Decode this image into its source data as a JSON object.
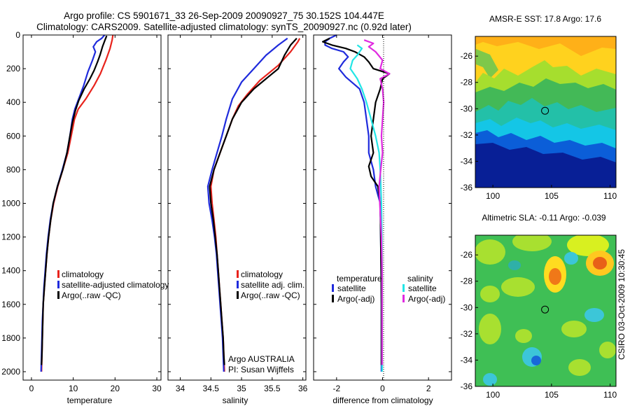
{
  "title": {
    "line1": "Argo profile: CS 5901671_33 26-Sep-2009 20090927_75 30.152S 104.447E",
    "line2": "Climatology: CARS2009. Satellite-adjusted climatology: synTS_20090927.nc (0.92d later)"
  },
  "side_label": "CSIRO 03-Oct-2009 10:30:45",
  "colors": {
    "climatology": "#e8231c",
    "satellite": "#1f2bdc",
    "argo": "#000000",
    "sal_satellite": "#22e6e6",
    "sal_argo": "#e02ae0"
  },
  "chart_data": [
    {
      "type": "line",
      "id": "temperature",
      "xlabel": "temperature",
      "ylabel": "",
      "xlim": [
        -2,
        31
      ],
      "ylim": [
        2050,
        0
      ],
      "x_ticks": [
        "0",
        "10",
        "20",
        "30"
      ],
      "y_ticks": [
        "0",
        "200",
        "400",
        "600",
        "800",
        "1000",
        "1200",
        "1400",
        "1600",
        "1800",
        "2000"
      ],
      "legend": [
        "climatology",
        "satellite-adjusted climatology",
        "Argo(..raw -QC)"
      ],
      "series": [
        {
          "name": "climatology",
          "color": "#e8231c",
          "points": [
            [
              19.5,
              0
            ],
            [
              19.3,
              30
            ],
            [
              18.8,
              80
            ],
            [
              17.8,
              150
            ],
            [
              16.5,
              230
            ],
            [
              15,
              300
            ],
            [
              13,
              380
            ],
            [
              11.2,
              440
            ],
            [
              10.3,
              500
            ],
            [
              9.5,
              600
            ],
            [
              8.7,
              700
            ],
            [
              7.5,
              800
            ],
            [
              6.3,
              900
            ],
            [
              5.3,
              1000
            ],
            [
              4.6,
              1100
            ],
            [
              4.1,
              1200
            ],
            [
              3.7,
              1300
            ],
            [
              3.4,
              1400
            ],
            [
              3.1,
              1500
            ],
            [
              2.8,
              1600
            ],
            [
              2.7,
              1700
            ],
            [
              2.6,
              1800
            ],
            [
              2.5,
              1900
            ],
            [
              2.4,
              2000
            ]
          ]
        },
        {
          "name": "satellite-adjusted climatology",
          "color": "#1f2bdc",
          "points": [
            [
              17.5,
              0
            ],
            [
              16.8,
              20
            ],
            [
              15.6,
              40
            ],
            [
              14.8,
              70
            ],
            [
              15.3,
              100
            ],
            [
              14.6,
              150
            ],
            [
              13.5,
              220
            ],
            [
              12.5,
              300
            ],
            [
              11.3,
              380
            ],
            [
              10.4,
              440
            ],
            [
              9.8,
              500
            ],
            [
              9.2,
              600
            ],
            [
              8.5,
              700
            ],
            [
              7.4,
              800
            ],
            [
              6.2,
              900
            ],
            [
              5.2,
              1000
            ],
            [
              4.5,
              1100
            ],
            [
              4,
              1200
            ],
            [
              3.6,
              1300
            ],
            [
              3.3,
              1400
            ],
            [
              3,
              1500
            ],
            [
              2.8,
              1600
            ],
            [
              2.6,
              1700
            ],
            [
              2.5,
              1800
            ],
            [
              2.4,
              1900
            ],
            [
              2.3,
              2000
            ]
          ]
        },
        {
          "name": "Argo(..raw -QC)",
          "color": "#000000",
          "points": [
            [
              18,
              5
            ],
            [
              17.6,
              30
            ],
            [
              17,
              70
            ],
            [
              16.4,
              120
            ],
            [
              15.8,
              160
            ],
            [
              15,
              210
            ],
            [
              14,
              260
            ],
            [
              12.6,
              320
            ],
            [
              11.3,
              390
            ],
            [
              10.5,
              450
            ],
            [
              9.8,
              520
            ],
            [
              9.2,
              600
            ],
            [
              8.5,
              700
            ],
            [
              7.5,
              800
            ],
            [
              6.2,
              900
            ],
            [
              5.2,
              1000
            ],
            [
              4.6,
              1100
            ],
            [
              4.1,
              1200
            ],
            [
              3.7,
              1300
            ],
            [
              3.4,
              1400
            ],
            [
              3.1,
              1500
            ],
            [
              2.8,
              1600
            ],
            [
              2.7,
              1700
            ],
            [
              2.6,
              1800
            ],
            [
              2.5,
              1900
            ],
            [
              2.4,
              1960
            ]
          ]
        }
      ]
    },
    {
      "type": "line",
      "id": "salinity",
      "xlabel": "salinity",
      "ylabel": "",
      "xlim": [
        33.8,
        36.05
      ],
      "ylim": [
        2050,
        0
      ],
      "x_ticks": [
        "34",
        "34.5",
        "35",
        "35.5",
        "36"
      ],
      "legend": [
        "climatology",
        "satellite adj. clim.",
        "Argo(..raw -QC)"
      ],
      "annotation": [
        "Argo AUSTRALIA",
        "PI: Susan Wijffels"
      ],
      "series": [
        {
          "name": "climatology",
          "color": "#e8231c",
          "points": [
            [
              35.95,
              20
            ],
            [
              35.92,
              40
            ],
            [
              35.8,
              100
            ],
            [
              35.6,
              180
            ],
            [
              35.3,
              270
            ],
            [
              35.1,
              350
            ],
            [
              34.95,
              420
            ],
            [
              34.85,
              500
            ],
            [
              34.75,
              600
            ],
            [
              34.65,
              700
            ],
            [
              34.55,
              800
            ],
            [
              34.5,
              900
            ],
            [
              34.52,
              1000
            ],
            [
              34.55,
              1100
            ],
            [
              34.58,
              1200
            ],
            [
              34.6,
              1300
            ],
            [
              34.62,
              1400
            ],
            [
              34.64,
              1500
            ],
            [
              34.66,
              1600
            ],
            [
              34.68,
              1700
            ],
            [
              34.7,
              1800
            ],
            [
              34.71,
              1900
            ],
            [
              34.72,
              2000
            ]
          ]
        },
        {
          "name": "satellite adj. clim.",
          "color": "#1f2bdc",
          "points": [
            [
              35.75,
              20
            ],
            [
              35.6,
              60
            ],
            [
              35.4,
              120
            ],
            [
              35.2,
              200
            ],
            [
              35,
              280
            ],
            [
              34.85,
              380
            ],
            [
              34.75,
              500
            ],
            [
              34.68,
              600
            ],
            [
              34.6,
              700
            ],
            [
              34.52,
              800
            ],
            [
              34.45,
              900
            ],
            [
              34.47,
              1000
            ],
            [
              34.52,
              1100
            ],
            [
              34.56,
              1200
            ],
            [
              34.59,
              1300
            ],
            [
              34.61,
              1400
            ],
            [
              34.63,
              1500
            ],
            [
              34.65,
              1600
            ],
            [
              34.67,
              1700
            ],
            [
              34.69,
              1800
            ],
            [
              34.7,
              1900
            ],
            [
              34.71,
              2000
            ]
          ]
        },
        {
          "name": "Argo(..raw -QC)",
          "color": "#000000",
          "points": [
            [
              35.9,
              20
            ],
            [
              35.8,
              60
            ],
            [
              35.7,
              120
            ],
            [
              35.6,
              200
            ],
            [
              35.4,
              260
            ],
            [
              35.2,
              320
            ],
            [
              35,
              400
            ],
            [
              34.85,
              500
            ],
            [
              34.75,
              600
            ],
            [
              34.65,
              700
            ],
            [
              34.55,
              800
            ],
            [
              34.48,
              900
            ],
            [
              34.5,
              1000
            ],
            [
              34.54,
              1100
            ],
            [
              34.57,
              1200
            ],
            [
              34.6,
              1300
            ],
            [
              34.62,
              1400
            ],
            [
              34.64,
              1500
            ],
            [
              34.66,
              1600
            ],
            [
              34.68,
              1700
            ],
            [
              34.7,
              1800
            ],
            [
              34.71,
              1900
            ],
            [
              34.72,
              1960
            ]
          ]
        }
      ]
    },
    {
      "type": "line",
      "id": "difference",
      "xlabel": "difference from climatology",
      "ylabel": "",
      "xlim": [
        -3,
        3
      ],
      "ylim": [
        2050,
        0
      ],
      "x_ticks": [
        "-2",
        "0",
        "2"
      ],
      "legend_groups": [
        {
          "header": "temperature",
          "items": [
            "satellite",
            "Argo(-adj)"
          ]
        },
        {
          "header": "salinity",
          "items": [
            "satellite",
            "Argo(-adj)"
          ]
        }
      ],
      "series": [
        {
          "name": "satellite",
          "group": "temperature",
          "color": "#1f2bdc",
          "points": [
            [
              -2,
              0
            ],
            [
              -2.3,
              20
            ],
            [
              -2.5,
              40
            ],
            [
              -2.5,
              60
            ],
            [
              -2.2,
              80
            ],
            [
              -1.7,
              100
            ],
            [
              -1.5,
              130
            ],
            [
              -1.7,
              160
            ],
            [
              -1.9,
              200
            ],
            [
              -1.6,
              250
            ],
            [
              -1,
              320
            ],
            [
              -0.8,
              400
            ],
            [
              -0.7,
              500
            ],
            [
              -0.6,
              600
            ],
            [
              -0.6,
              700
            ],
            [
              -0.4,
              800
            ],
            [
              -0.3,
              900
            ],
            [
              -0.1,
              1000
            ],
            [
              -0.08,
              1200
            ],
            [
              -0.06,
              1400
            ],
            [
              -0.05,
              1600
            ],
            [
              -0.05,
              1800
            ],
            [
              -0.05,
              2000
            ]
          ]
        },
        {
          "name": "Argo(-adj)",
          "group": "temperature",
          "color": "#000000",
          "points": [
            [
              -2.3,
              20
            ],
            [
              -2.6,
              40
            ],
            [
              -2.2,
              60
            ],
            [
              -1.6,
              80
            ],
            [
              -1.2,
              100
            ],
            [
              -0.8,
              130
            ],
            [
              -0.6,
              160
            ],
            [
              -0.4,
              200
            ],
            [
              0.3,
              230
            ],
            [
              0,
              260
            ],
            [
              -0.1,
              320
            ],
            [
              -0.3,
              400
            ],
            [
              -0.4,
              500
            ],
            [
              -0.5,
              600
            ],
            [
              -0.4,
              700
            ],
            [
              -0.6,
              780
            ],
            [
              -0.5,
              840
            ],
            [
              -0.2,
              900
            ],
            [
              -0.1,
              1000
            ],
            [
              -0.08,
              1200
            ],
            [
              -0.06,
              1400
            ],
            [
              -0.05,
              1600
            ],
            [
              -0.05,
              1800
            ],
            [
              -0.05,
              1960
            ]
          ]
        },
        {
          "name": "satellite",
          "group": "salinity",
          "color": "#22e6e6",
          "points": [
            [
              -1.1,
              60
            ],
            [
              -0.9,
              80
            ],
            [
              -1,
              100
            ],
            [
              -1.1,
              120
            ],
            [
              -1.3,
              150
            ],
            [
              -1.4,
              200
            ],
            [
              -1.1,
              260
            ],
            [
              -0.9,
              320
            ],
            [
              -0.7,
              400
            ],
            [
              -0.5,
              500
            ],
            [
              -0.3,
              600
            ],
            [
              -0.15,
              700
            ],
            [
              -0.1,
              800
            ],
            [
              -0.05,
              1000
            ],
            [
              -0.03,
              1200
            ],
            [
              -0.02,
              1400
            ],
            [
              -0.02,
              1600
            ],
            [
              -0.02,
              1800
            ],
            [
              -0.02,
              2000
            ]
          ]
        },
        {
          "name": "Argo(-adj)",
          "group": "salinity",
          "color": "#e02ae0",
          "points": [
            [
              -0.8,
              30
            ],
            [
              -0.4,
              50
            ],
            [
              -0.6,
              70
            ],
            [
              -0.3,
              100
            ],
            [
              0,
              150
            ],
            [
              -0.1,
              200
            ],
            [
              0.3,
              230
            ],
            [
              -0.1,
              260
            ],
            [
              0,
              320
            ],
            [
              0.05,
              400
            ],
            [
              0,
              500
            ],
            [
              -0.05,
              600
            ],
            [
              0,
              700
            ],
            [
              -0.08,
              800
            ],
            [
              -0.15,
              900
            ],
            [
              -0.12,
              1000
            ],
            [
              -0.05,
              1200
            ],
            [
              -0.02,
              1400
            ],
            [
              -0.02,
              1600
            ],
            [
              -0.02,
              1800
            ],
            [
              -0.02,
              1960
            ]
          ]
        }
      ]
    },
    {
      "type": "heatmap",
      "id": "sst_map",
      "title": "AMSR-E SST: 17.8 Argo: 17.6",
      "xlim": [
        98.5,
        110.5
      ],
      "ylim": [
        -36,
        -24.5
      ],
      "x_ticks": [
        "100",
        "105",
        "110"
      ],
      "y_ticks": [
        "-26",
        "-28",
        "-30",
        "-32",
        "-34",
        "-36"
      ],
      "marker": [
        104.447,
        -30.152
      ]
    },
    {
      "type": "heatmap",
      "id": "sla_map",
      "title": "Altimetric SLA: -0.11 Argo: -0.039",
      "xlim": [
        98.5,
        110.5
      ],
      "ylim": [
        -36,
        -24.5
      ],
      "x_ticks": [
        "100",
        "105",
        "110"
      ],
      "y_ticks": [
        "-26",
        "-28",
        "-30",
        "-32",
        "-34",
        "-36"
      ],
      "marker": [
        104.447,
        -30.152
      ]
    }
  ]
}
